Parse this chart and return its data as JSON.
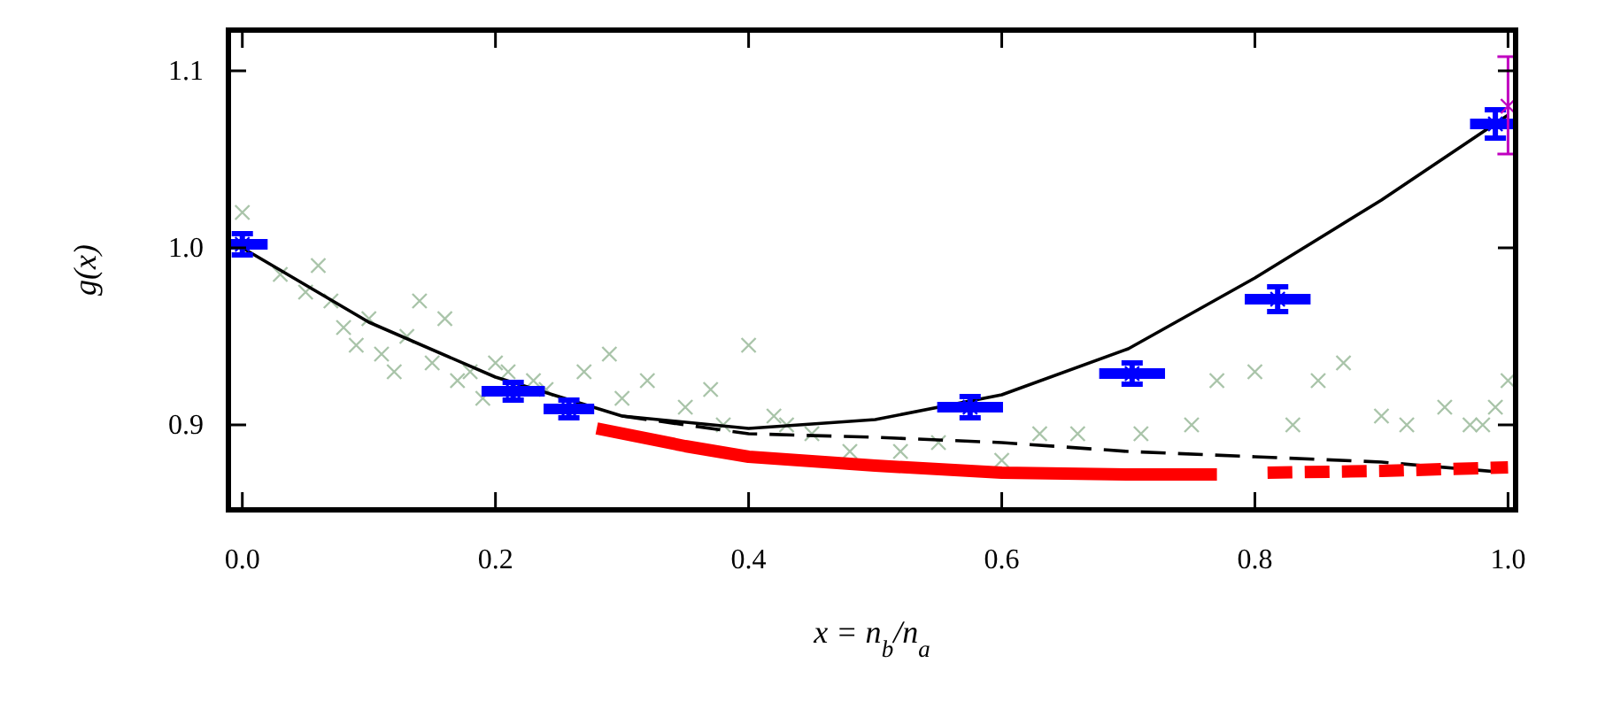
{
  "chart_data": {
    "type": "line",
    "xlabel": "x = n$_{b}$/n$_{a}$",
    "ylabel": "g(x)",
    "xlim": [
      -0.011,
      1.006
    ],
    "ylim": [
      0.852,
      1.123
    ],
    "xticks": [
      {
        "value": 0,
        "label": "0.0"
      },
      0.2,
      0.4,
      0.6,
      0.8,
      {
        "value": 1,
        "label": "1.0"
      }
    ],
    "yticks": [
      0.9,
      {
        "value": 1,
        "label": "1.0"
      },
      1.1
    ],
    "grid": false,
    "series": [
      {
        "type": "scatter",
        "marker": "cross",
        "color": "#a9c4a9",
        "x": [
          0.0,
          0.03,
          0.05,
          0.06,
          0.07,
          0.08,
          0.09,
          0.1,
          0.11,
          0.12,
          0.13,
          0.14,
          0.15,
          0.16,
          0.17,
          0.18,
          0.19,
          0.2,
          0.21,
          0.23,
          0.24,
          0.27,
          0.29,
          0.3,
          0.32,
          0.35,
          0.37,
          0.38,
          0.4,
          0.42,
          0.43,
          0.45,
          0.48,
          0.52,
          0.55,
          0.6,
          0.63,
          0.66,
          0.71,
          0.75,
          0.77,
          0.8,
          0.83,
          0.85,
          0.87,
          0.9,
          0.92,
          0.95,
          0.97,
          0.98,
          0.99,
          1.0
        ],
        "values": [
          1.02,
          0.985,
          0.975,
          0.99,
          0.97,
          0.955,
          0.945,
          0.96,
          0.94,
          0.93,
          0.95,
          0.97,
          0.935,
          0.96,
          0.925,
          0.93,
          0.915,
          0.935,
          0.93,
          0.925,
          0.92,
          0.93,
          0.94,
          0.915,
          0.925,
          0.91,
          0.92,
          0.9,
          0.945,
          0.905,
          0.9,
          0.895,
          0.885,
          0.885,
          0.89,
          0.88,
          0.895,
          0.895,
          0.895,
          0.9,
          0.925,
          0.93,
          0.9,
          0.925,
          0.935,
          0.905,
          0.9,
          0.91,
          0.9,
          0.9,
          0.91,
          0.925
        ]
      },
      {
        "line_style": "dashed",
        "color": "#000000",
        "x": [
          0.3,
          0.4,
          0.5,
          0.6,
          0.7,
          0.8,
          0.9,
          1.0
        ],
        "values": [
          0.905,
          0.895,
          0.893,
          0.89,
          0.885,
          0.882,
          0.879,
          0.873
        ]
      },
      {
        "line_style": "solid",
        "color": "#000000",
        "x": [
          0.0,
          0.1,
          0.2,
          0.3,
          0.4,
          0.5,
          0.6,
          0.7,
          0.8,
          0.9,
          1.0
        ],
        "values": [
          1.0,
          0.958,
          0.927,
          0.905,
          0.898,
          0.903,
          0.917,
          0.943,
          0.983,
          1.027,
          1.075
        ]
      },
      {
        "type": "line",
        "line_style": "solid",
        "color": "#ff0000",
        "x": [
          0.28,
          0.35,
          0.4,
          0.5,
          0.6,
          0.7,
          0.77
        ],
        "values": [
          0.898,
          0.888,
          0.882,
          0.877,
          0.873,
          0.872,
          0.872
        ]
      },
      {
        "type": "line",
        "line_style": "dashed",
        "color": "#ff0000",
        "x": [
          0.81,
          0.9,
          1.0
        ],
        "values": [
          0.873,
          0.874,
          0.876
        ]
      },
      {
        "type": "scatter",
        "marker": "cross",
        "color": "#0000ff",
        "x": [
          0.0,
          0.214,
          0.258,
          0.575,
          0.703,
          0.818,
          0.99
        ],
        "values": [
          1.002,
          0.919,
          0.909,
          0.91,
          0.929,
          0.971,
          1.07
        ],
        "errors": [
          0.006,
          0.005,
          0.005,
          0.006,
          0.006,
          0.007,
          0.008
        ],
        "xerrors": [
          0.02,
          0.025,
          0.02,
          0.026,
          0.026,
          0.026,
          0.02
        ]
      },
      {
        "type": "scatter",
        "marker": "cross",
        "color": "#c000c0",
        "x": [
          1.0
        ],
        "values": [
          1.08
        ],
        "errors": [
          [
            1.053,
            1.108
          ]
        ]
      }
    ]
  }
}
